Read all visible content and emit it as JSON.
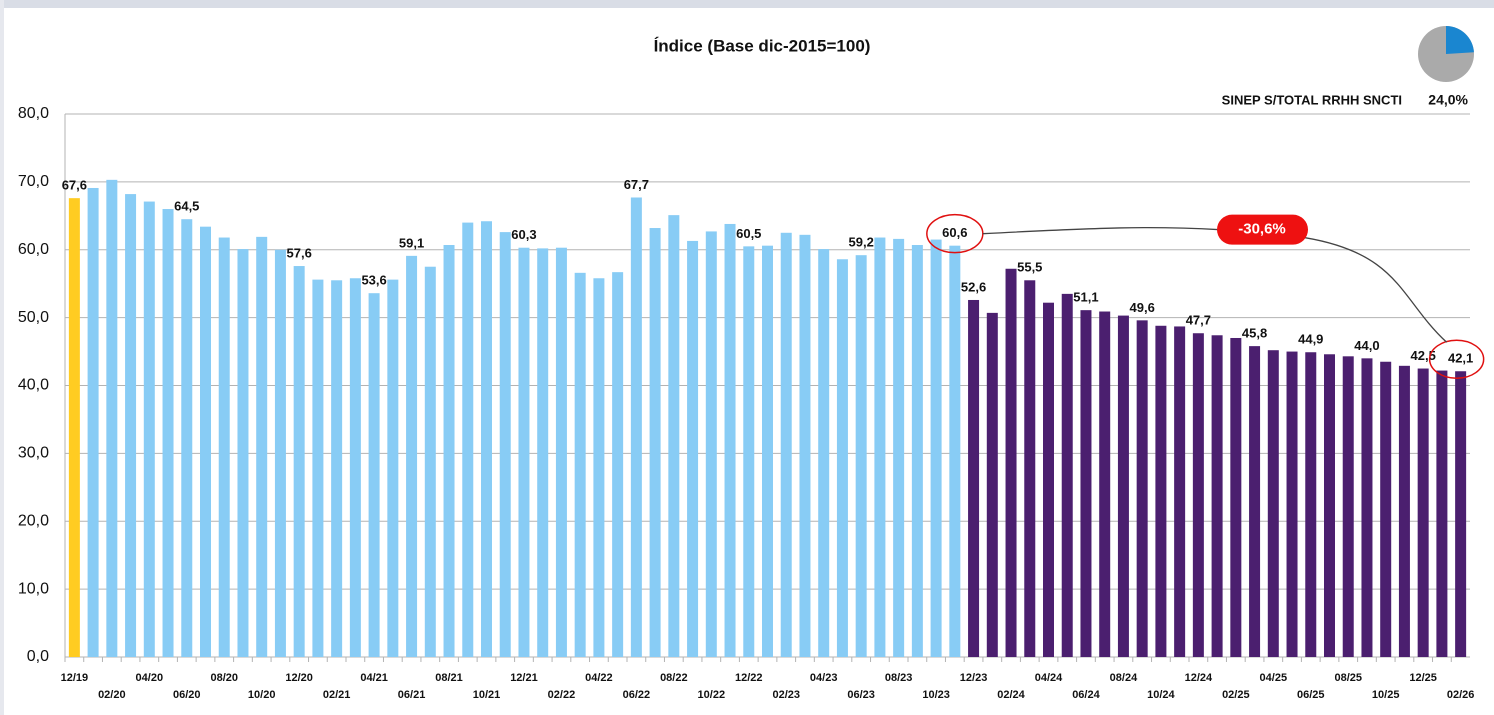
{
  "chart_data": [
    {
      "type": "bar",
      "title": "Índice (Base dic-2015=100)",
      "categories": [
        "12/19",
        null,
        "02/20",
        null,
        "04/20",
        null,
        "06/20",
        null,
        "08/20",
        null,
        "10/20",
        null,
        "12/20",
        null,
        "02/21",
        null,
        "04/21",
        null,
        "06/21",
        null,
        "08/21",
        null,
        "10/21",
        null,
        "12/21",
        null,
        "02/22",
        null,
        "04/22",
        null,
        "06/22",
        null,
        "08/22",
        null,
        "10/22",
        null,
        "12/22",
        null,
        "02/23",
        null,
        "04/23",
        null,
        "06/23",
        null,
        "08/23",
        null,
        "10/23",
        null,
        "12/23",
        null,
        "02/24",
        null,
        "04/24",
        null,
        "06/24",
        null,
        "08/24",
        null,
        "10/24",
        null,
        "12/24",
        null,
        "02/25",
        null,
        "04/25",
        null,
        "06/25",
        null,
        "08/25",
        null,
        "10/25",
        null,
        "12/25",
        null,
        "02/26"
      ],
      "values": [
        67.6,
        69.1,
        70.3,
        68.2,
        67.1,
        66.0,
        64.5,
        63.4,
        61.8,
        60.1,
        61.9,
        60.0,
        57.6,
        55.6,
        55.5,
        55.8,
        53.6,
        55.6,
        59.1,
        57.5,
        60.7,
        64.0,
        64.2,
        62.6,
        60.3,
        60.2,
        60.3,
        56.6,
        55.8,
        56.7,
        67.7,
        63.2,
        65.1,
        61.3,
        62.7,
        63.8,
        60.5,
        60.6,
        62.5,
        62.2,
        60.1,
        58.6,
        59.2,
        61.8,
        61.6,
        60.7,
        61.5,
        60.6,
        52.6,
        50.7,
        57.2,
        55.5,
        52.2,
        53.5,
        51.1,
        50.9,
        50.3,
        49.6,
        48.8,
        48.7,
        47.7,
        47.4,
        47.0,
        45.8,
        45.2,
        45.0,
        44.9,
        44.6,
        44.3,
        44.0,
        43.5,
        42.9,
        42.5,
        42.2,
        42.1
      ],
      "value_labels": [
        "67,6",
        null,
        null,
        null,
        null,
        null,
        "64,5",
        null,
        null,
        null,
        null,
        null,
        "57,6",
        null,
        null,
        null,
        "53,6",
        null,
        "59,1",
        null,
        null,
        null,
        null,
        null,
        "60,3",
        null,
        null,
        null,
        null,
        null,
        "67,7",
        null,
        null,
        null,
        null,
        null,
        "60,5",
        null,
        null,
        null,
        null,
        null,
        "59,2",
        null,
        null,
        null,
        null,
        "60,6",
        "52,6",
        null,
        null,
        "55,5",
        null,
        null,
        "51,1",
        null,
        null,
        "49,6",
        null,
        null,
        "47,7",
        null,
        null,
        "45,8",
        null,
        null,
        "44,9",
        null,
        null,
        "44,0",
        null,
        null,
        "42,5",
        null,
        "42,1"
      ],
      "colors": [
        "#ffcc22",
        "#88ccf5",
        "#88ccf5",
        "#88ccf5",
        "#88ccf5",
        "#88ccf5",
        "#88ccf5",
        "#88ccf5",
        "#88ccf5",
        "#88ccf5",
        "#88ccf5",
        "#88ccf5",
        "#88ccf5",
        "#88ccf5",
        "#88ccf5",
        "#88ccf5",
        "#88ccf5",
        "#88ccf5",
        "#88ccf5",
        "#88ccf5",
        "#88ccf5",
        "#88ccf5",
        "#88ccf5",
        "#88ccf5",
        "#88ccf5",
        "#88ccf5",
        "#88ccf5",
        "#88ccf5",
        "#88ccf5",
        "#88ccf5",
        "#88ccf5",
        "#88ccf5",
        "#88ccf5",
        "#88ccf5",
        "#88ccf5",
        "#88ccf5",
        "#88ccf5",
        "#88ccf5",
        "#88ccf5",
        "#88ccf5",
        "#88ccf5",
        "#88ccf5",
        "#88ccf5",
        "#88ccf5",
        "#88ccf5",
        "#88ccf5",
        "#88ccf5",
        "#88ccf5",
        "#4b1f6f",
        "#4b1f6f",
        "#4b1f6f",
        "#4b1f6f",
        "#4b1f6f",
        "#4b1f6f",
        "#4b1f6f",
        "#4b1f6f",
        "#4b1f6f",
        "#4b1f6f",
        "#4b1f6f",
        "#4b1f6f",
        "#4b1f6f",
        "#4b1f6f",
        "#4b1f6f",
        "#4b1f6f",
        "#4b1f6f",
        "#4b1f6f",
        "#4b1f6f",
        "#4b1f6f",
        "#4b1f6f",
        "#4b1f6f",
        "#4b1f6f",
        "#4b1f6f",
        "#4b1f6f",
        "#4b1f6f",
        "#4b1f6f"
      ],
      "ylim": [
        0,
        80
      ],
      "yticks": [
        {
          "value": 0,
          "label": "0,0"
        },
        {
          "value": 10,
          "label": "10,0"
        },
        {
          "value": 20,
          "label": "20,0"
        },
        {
          "value": 30,
          "label": "30,0"
        },
        {
          "value": 40,
          "label": "40,0"
        },
        {
          "value": 50,
          "label": "50,0"
        },
        {
          "value": 60,
          "label": "60,0"
        },
        {
          "value": 70,
          "label": "70,0"
        },
        {
          "value": 80,
          "label": "80,0"
        }
      ],
      "grid": true,
      "annotation": "-30,6%"
    },
    {
      "type": "pie",
      "title": "SINEP S/TOTAL RRHH SNCTI",
      "values": [
        24.0
      ],
      "value_labels": [
        "24,0%"
      ],
      "color": "#1a86d0",
      "rest_color": "#aaaaaa"
    }
  ]
}
